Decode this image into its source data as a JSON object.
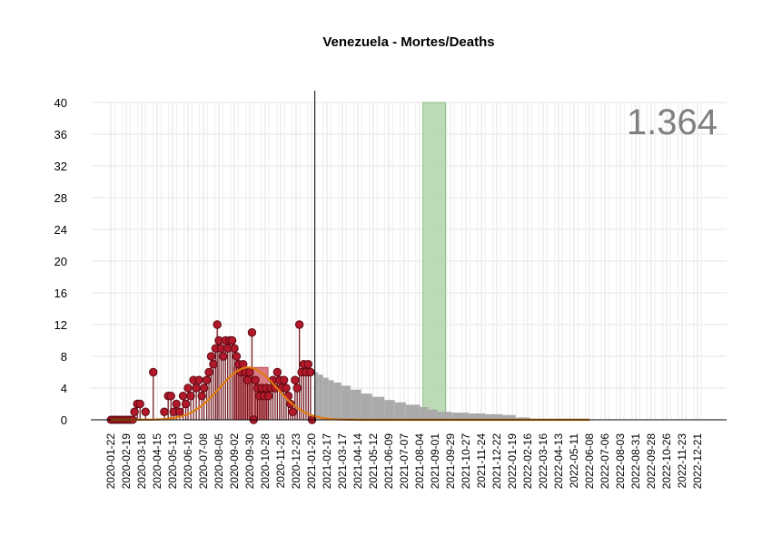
{
  "chart_data": {
    "type": "bar",
    "title": "Venezuela - Mortes/Deaths",
    "big_number": "1.364",
    "xlabel": "",
    "ylabel": "",
    "ylim": [
      0,
      40
    ],
    "yticks": [
      0,
      4,
      8,
      12,
      16,
      20,
      24,
      28,
      32,
      36,
      40
    ],
    "x_start": "2020-01-22",
    "x_ticks": [
      "2020-01-22",
      "2020-02-19",
      "2020-03-18",
      "2020-04-15",
      "2020-05-13",
      "2020-06-10",
      "2020-07-08",
      "2020-08-05",
      "2020-09-02",
      "2020-09-30",
      "2020-10-28",
      "2020-11-25",
      "2020-12-23",
      "2021-01-20",
      "2021-02-17",
      "2021-03-17",
      "2021-04-14",
      "2021-05-12",
      "2021-06-09",
      "2021-07-07",
      "2021-08-04",
      "2021-09-01",
      "2021-09-29",
      "2021-10-27",
      "2021-11-24",
      "2021-12-22",
      "2022-01-19",
      "2022-02-16",
      "2022-03-16",
      "2022-04-13",
      "2022-05-11",
      "2022-06-08",
      "2022-07-06",
      "2022-08-03",
      "2022-08-31",
      "2022-09-28",
      "2022-10-26",
      "2022-11-23",
      "2022-12-21"
    ],
    "today_marker": "2021-01-26",
    "highlight_band": {
      "from": "2021-08-10",
      "to": "2021-09-20",
      "top": 40,
      "color": "#b9d8b3"
    },
    "peak_band": {
      "from": "2020-09-01",
      "to": "2020-11-02",
      "top": 6.6,
      "color": "#d9737b"
    },
    "observed": {
      "color": "#b2182b",
      "points": [
        [
          "2020-03-05",
          1
        ],
        [
          "2020-03-10",
          2
        ],
        [
          "2020-03-15",
          2
        ],
        [
          "2020-03-25",
          1
        ],
        [
          "2020-04-08",
          6
        ],
        [
          "2020-04-28",
          1
        ],
        [
          "2020-05-05",
          3
        ],
        [
          "2020-05-10",
          3
        ],
        [
          "2020-05-15",
          1
        ],
        [
          "2020-05-20",
          2
        ],
        [
          "2020-05-26",
          1
        ],
        [
          "2020-06-01",
          3
        ],
        [
          "2020-06-06",
          2
        ],
        [
          "2020-06-10",
          4
        ],
        [
          "2020-06-15",
          3
        ],
        [
          "2020-06-20",
          5
        ],
        [
          "2020-06-25",
          4
        ],
        [
          "2020-06-30",
          5
        ],
        [
          "2020-07-05",
          3
        ],
        [
          "2020-07-09",
          4
        ],
        [
          "2020-07-14",
          5
        ],
        [
          "2020-07-18",
          6
        ],
        [
          "2020-07-22",
          8
        ],
        [
          "2020-07-26",
          7
        ],
        [
          "2020-07-30",
          9
        ],
        [
          "2020-08-02",
          12
        ],
        [
          "2020-08-05",
          10
        ],
        [
          "2020-08-09",
          9
        ],
        [
          "2020-08-13",
          8
        ],
        [
          "2020-08-17",
          10
        ],
        [
          "2020-08-21",
          9
        ],
        [
          "2020-08-25",
          10
        ],
        [
          "2020-08-29",
          10
        ],
        [
          "2020-09-02",
          9
        ],
        [
          "2020-09-06",
          8
        ],
        [
          "2020-09-10",
          7
        ],
        [
          "2020-09-14",
          6
        ],
        [
          "2020-09-18",
          7
        ],
        [
          "2020-09-22",
          6
        ],
        [
          "2020-09-26",
          5
        ],
        [
          "2020-09-30",
          6
        ],
        [
          "2020-10-04",
          11
        ],
        [
          "2020-10-07",
          0
        ],
        [
          "2020-10-10",
          5
        ],
        [
          "2020-10-14",
          4
        ],
        [
          "2020-10-18",
          3
        ],
        [
          "2020-10-22",
          4
        ],
        [
          "2020-10-26",
          3
        ],
        [
          "2020-10-30",
          4
        ],
        [
          "2020-11-03",
          3
        ],
        [
          "2020-11-07",
          4
        ],
        [
          "2020-11-11",
          5
        ],
        [
          "2020-11-15",
          4
        ],
        [
          "2020-11-19",
          6
        ],
        [
          "2020-11-23",
          5
        ],
        [
          "2020-11-27",
          4
        ],
        [
          "2020-12-01",
          5
        ],
        [
          "2020-12-05",
          4
        ],
        [
          "2020-12-09",
          3
        ],
        [
          "2020-12-13",
          2
        ],
        [
          "2020-12-17",
          1
        ],
        [
          "2020-12-21",
          5
        ],
        [
          "2020-12-25",
          4
        ],
        [
          "2020-12-29",
          12
        ],
        [
          "2021-01-02",
          6
        ],
        [
          "2021-01-06",
          7
        ],
        [
          "2021-01-10",
          6
        ],
        [
          "2021-01-14",
          7
        ],
        [
          "2021-01-18",
          6
        ],
        [
          "2021-01-21",
          0
        ]
      ]
    },
    "smoothed_curve": {
      "color": "#e07b10",
      "peak_date": "2020-09-27",
      "peak_value": 6.6,
      "sd_days": 52,
      "end_date": "2022-06-08"
    },
    "forecast": {
      "color": "#aaaaaa",
      "steps": [
        [
          "2021-01-26",
          6
        ],
        [
          "2021-02-01",
          5.7
        ],
        [
          "2021-02-10",
          5.3
        ],
        [
          "2021-02-20",
          5
        ],
        [
          "2021-03-01",
          4.7
        ],
        [
          "2021-03-15",
          4.3
        ],
        [
          "2021-04-01",
          3.8
        ],
        [
          "2021-04-20",
          3.3
        ],
        [
          "2021-05-10",
          2.9
        ],
        [
          "2021-06-01",
          2.5
        ],
        [
          "2021-06-20",
          2.2
        ],
        [
          "2021-07-10",
          1.9
        ],
        [
          "2021-08-05",
          1.6
        ],
        [
          "2021-08-20",
          1.3
        ],
        [
          "2021-09-05",
          1.0
        ],
        [
          "2021-10-01",
          0.9
        ],
        [
          "2021-11-01",
          0.8
        ],
        [
          "2021-12-01",
          0.7
        ],
        [
          "2022-01-01",
          0.6
        ],
        [
          "2022-01-25",
          0.3
        ],
        [
          "2022-02-20",
          0.15
        ],
        [
          "2022-06-08",
          0.05
        ]
      ]
    },
    "grid": true
  }
}
